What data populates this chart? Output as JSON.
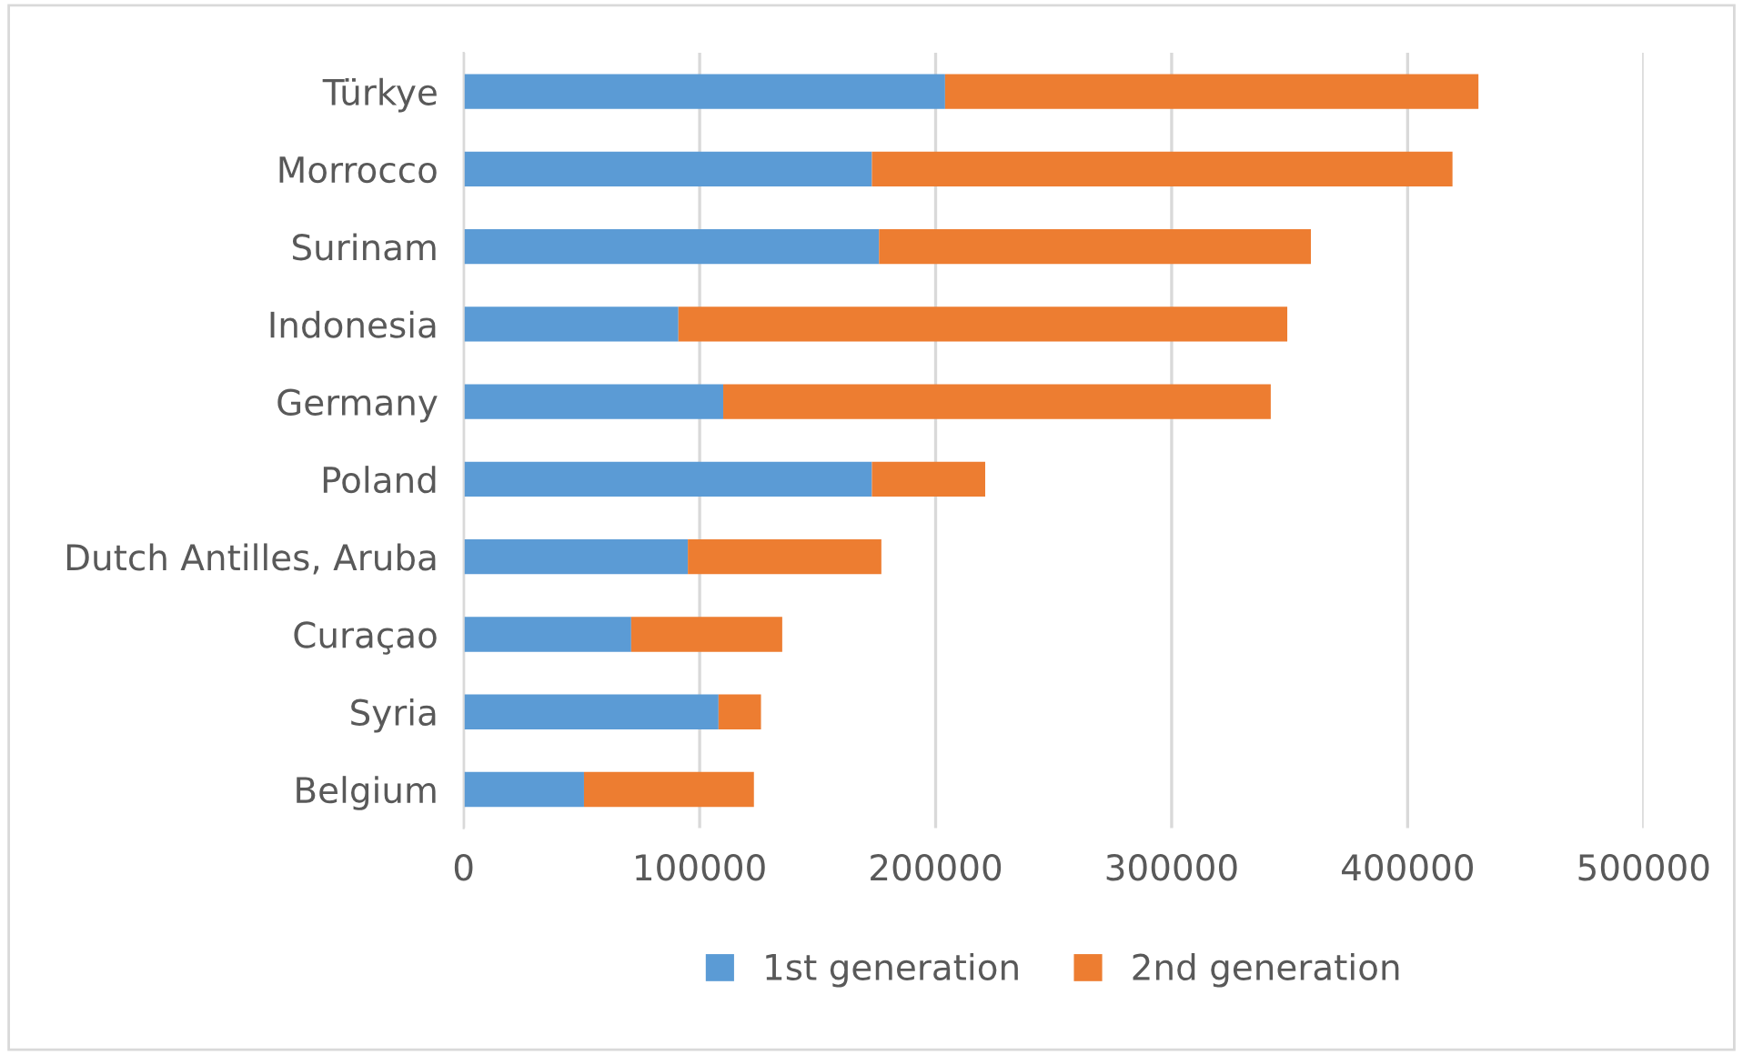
{
  "chart_data": {
    "type": "bar",
    "orientation": "horizontal",
    "stacked": true,
    "categories": [
      "Türkye",
      "Morrocco",
      "Surinam",
      "Indonesia",
      "Germany",
      "Poland",
      "Dutch Antilles, Aruba",
      "Curaçao",
      "Syria",
      "Belgium"
    ],
    "series": [
      {
        "name": "1st generation",
        "color": "#5b9bd5",
        "values": [
          204000,
          173000,
          176000,
          91000,
          110000,
          173000,
          95000,
          71000,
          108000,
          51000
        ]
      },
      {
        "name": "2nd generation",
        "color": "#ed7d31",
        "values": [
          226000,
          246000,
          183000,
          258000,
          232000,
          48000,
          82000,
          64000,
          18000,
          72000
        ]
      }
    ],
    "xlim": [
      0,
      500000
    ],
    "xticks": [
      0,
      100000,
      200000,
      300000,
      400000,
      500000
    ],
    "grid": "x",
    "legend": "bottom"
  }
}
